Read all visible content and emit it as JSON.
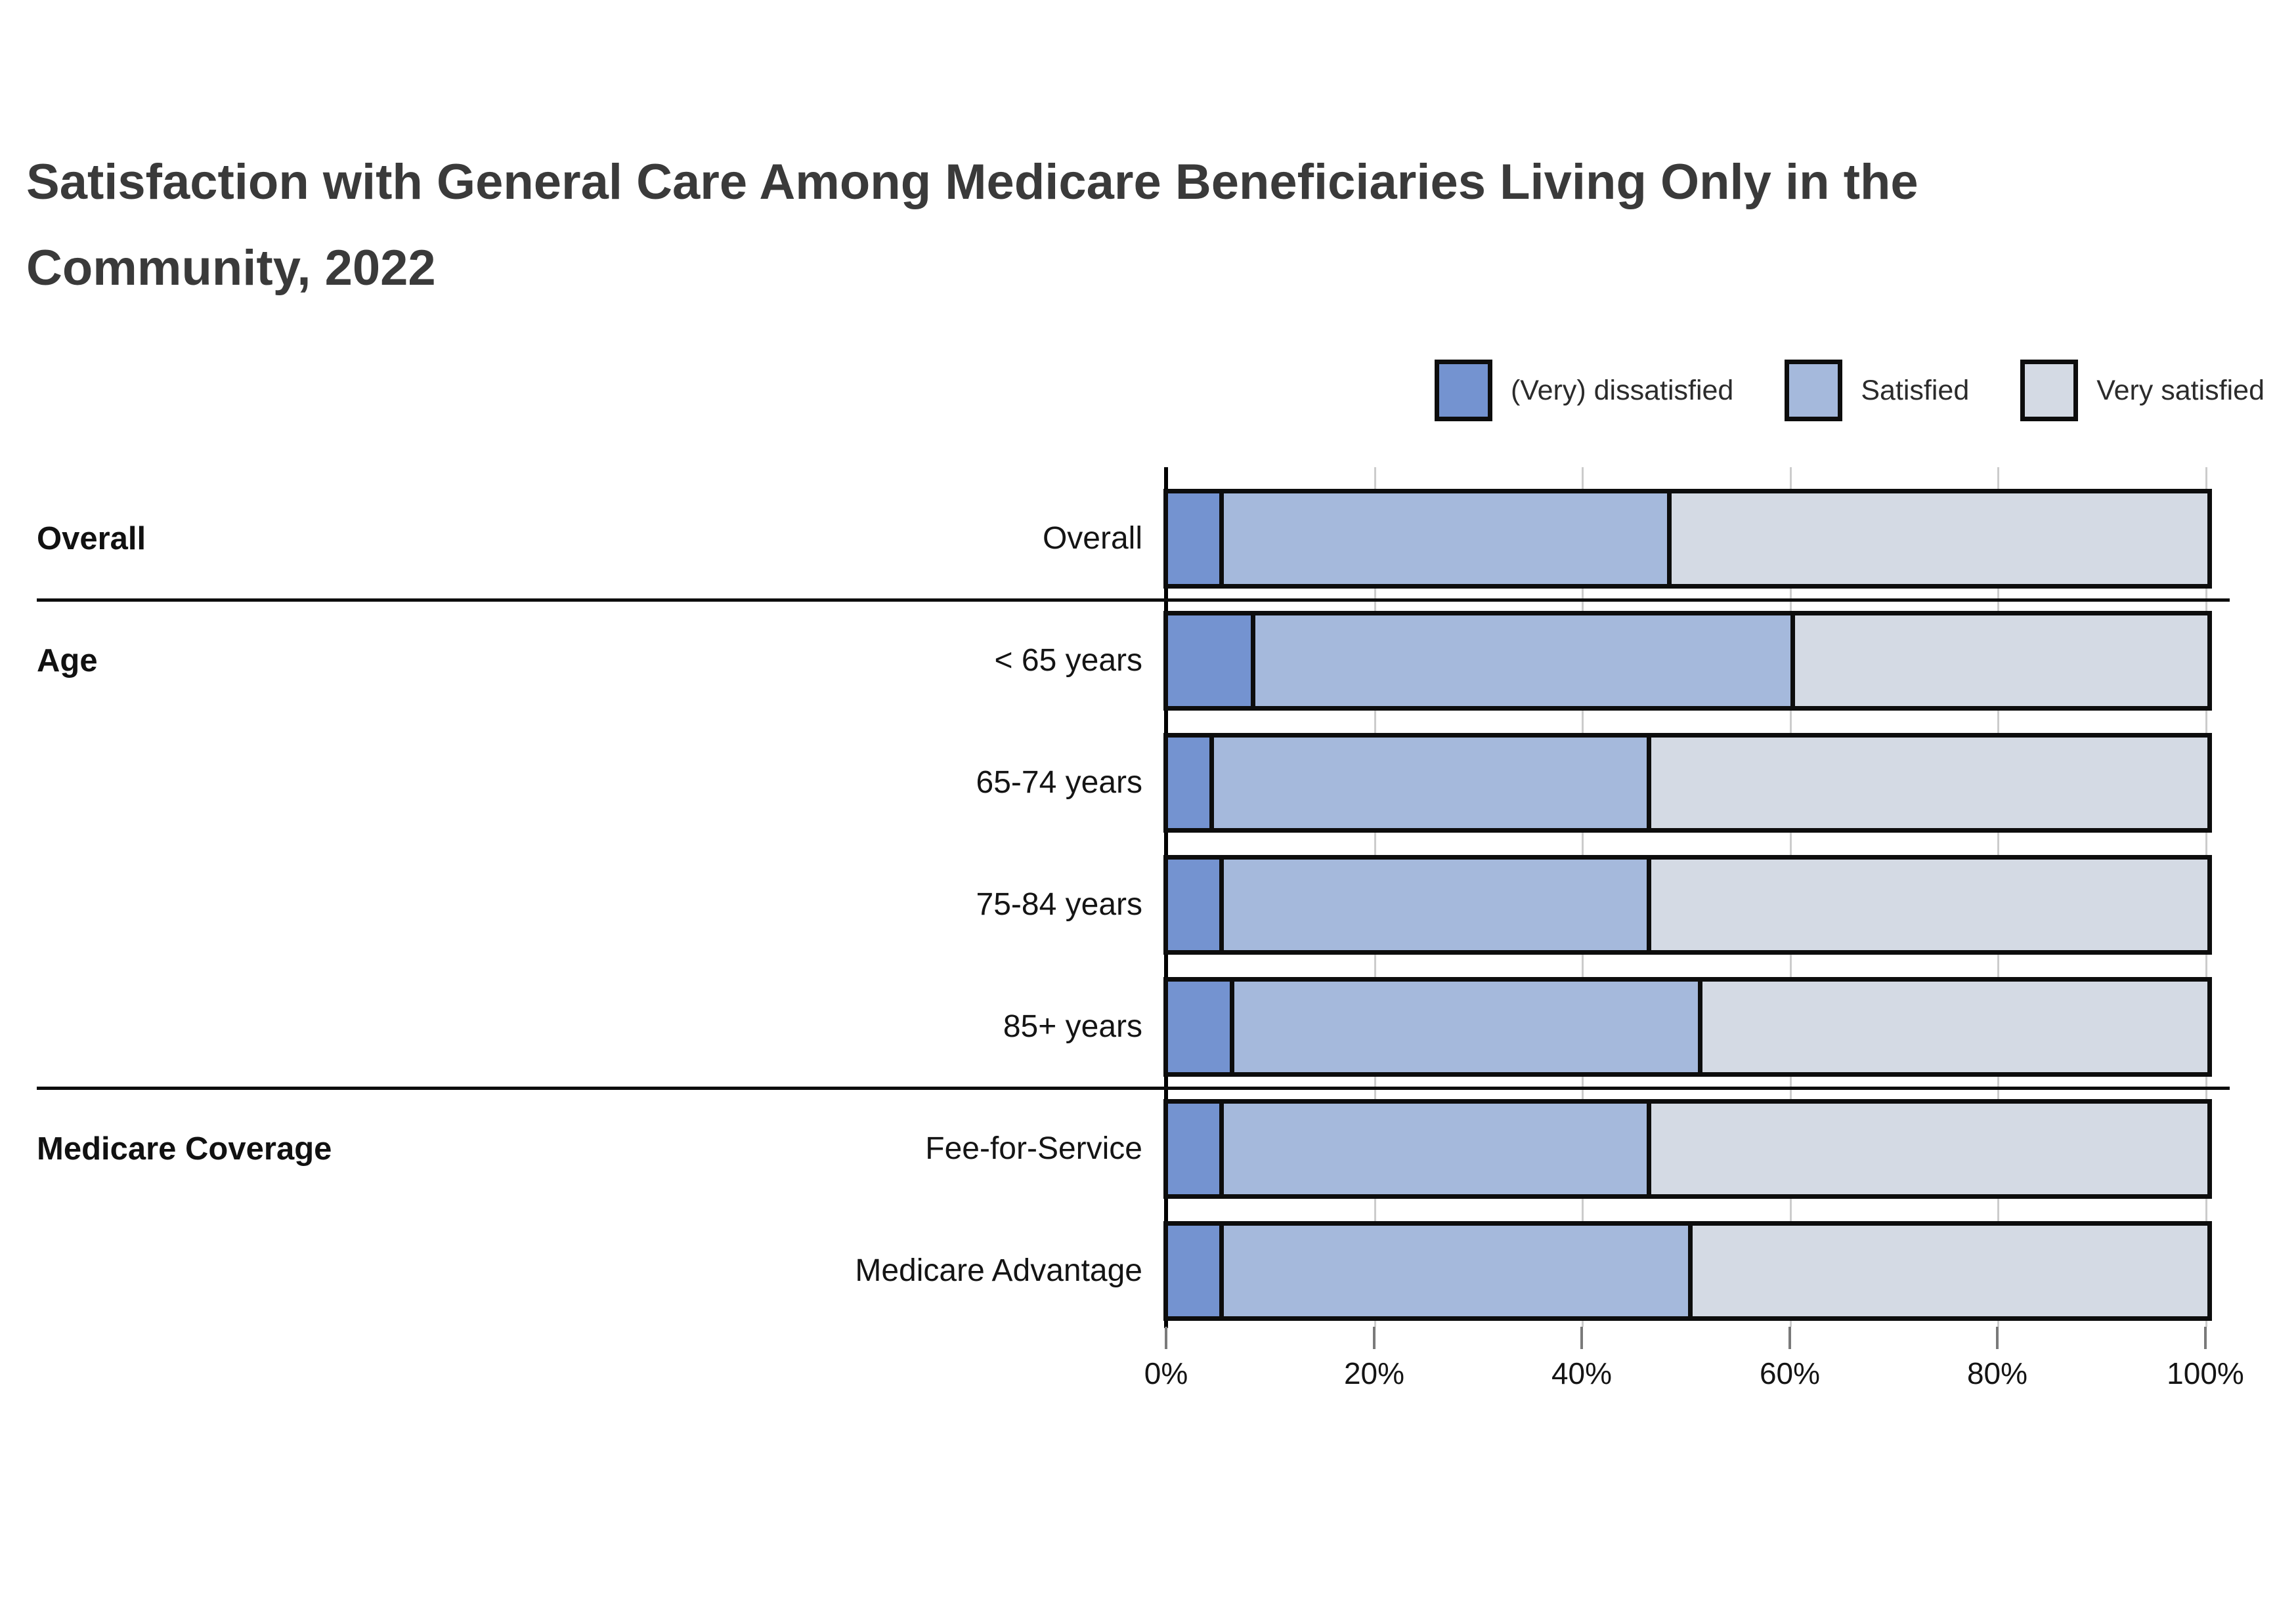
{
  "title": {
    "line1": "Satisfaction with General Care Among Medicare Beneficiaries Living Only in the",
    "line2": "Community, 2022"
  },
  "legend": {
    "items": [
      {
        "label": "(Very) dissatisfied",
        "color": "#7493d0"
      },
      {
        "label": "Satisfied",
        "color": "#a5b9dc"
      },
      {
        "label": "Very satisfied",
        "color": "#d4dae4"
      }
    ]
  },
  "chart_data": {
    "type": "bar",
    "stacked": true,
    "orientation": "horizontal",
    "title": "Satisfaction with General Care Among Medicare Beneficiaries Living Only in the Community, 2022",
    "categories": [
      "Overall",
      "< 65 years",
      "65-74 years",
      "75-84 years",
      "85+ years",
      "Fee-for-Service",
      "Medicare Advantage"
    ],
    "group_labels": [
      {
        "label": "Overall",
        "row": 0
      },
      {
        "label": "Age",
        "row": 1
      },
      {
        "label": "Medicare Coverage",
        "row": 5
      }
    ],
    "series": [
      {
        "name": "(Very) dissatisfied",
        "color": "#7493d0",
        "values": [
          5,
          8,
          4,
          5,
          6,
          5,
          5
        ]
      },
      {
        "name": "Satisfied",
        "color": "#a5b9dc",
        "values": [
          43,
          52,
          42,
          41,
          45,
          41,
          45
        ]
      },
      {
        "name": "Very satisfied",
        "color": "#d4dae4",
        "values": [
          52,
          40,
          54,
          54,
          49,
          54,
          50
        ]
      }
    ],
    "x_ticks": [
      "0%",
      "20%",
      "40%",
      "60%",
      "80%",
      "100%"
    ],
    "xlim": [
      0,
      100
    ],
    "grid": true,
    "legend_position": "top-right",
    "units": "percent"
  }
}
